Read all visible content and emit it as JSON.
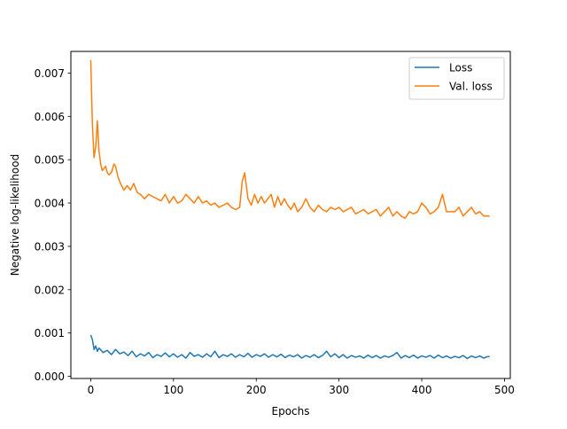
{
  "chart_data": {
    "type": "line",
    "title": "",
    "xlabel": "Epochs",
    "ylabel": "Negative log-likelihood",
    "xlim": [
      -24,
      507
    ],
    "ylim": [
      -5e-05,
      0.0075
    ],
    "x_ticks": [
      0,
      100,
      200,
      300,
      400,
      500
    ],
    "y_ticks": [
      0.0,
      0.001,
      0.002,
      0.003,
      0.004,
      0.005,
      0.006,
      0.007
    ],
    "y_tick_labels": [
      "0.000",
      "0.001",
      "0.002",
      "0.003",
      "0.004",
      "0.005",
      "0.006",
      "0.007"
    ],
    "grid": false,
    "legend_position": "top-right",
    "series": [
      {
        "name": "Loss",
        "color": "#1f77b4",
        "x": [
          0,
          2,
          4,
          6,
          8,
          10,
          15,
          20,
          25,
          30,
          35,
          40,
          45,
          50,
          55,
          60,
          65,
          70,
          75,
          80,
          85,
          90,
          95,
          100,
          105,
          110,
          115,
          120,
          125,
          130,
          135,
          140,
          145,
          150,
          155,
          160,
          165,
          170,
          175,
          180,
          185,
          190,
          195,
          200,
          205,
          210,
          215,
          220,
          225,
          230,
          235,
          240,
          245,
          250,
          255,
          260,
          265,
          270,
          275,
          280,
          285,
          290,
          295,
          300,
          305,
          310,
          315,
          320,
          325,
          330,
          335,
          340,
          345,
          350,
          355,
          360,
          365,
          370,
          375,
          380,
          385,
          390,
          395,
          400,
          405,
          410,
          415,
          420,
          425,
          430,
          435,
          440,
          445,
          450,
          455,
          460,
          465,
          470,
          475,
          480,
          482
        ],
        "y": [
          0.00095,
          0.00085,
          0.00062,
          0.0007,
          0.00058,
          0.00065,
          0.00055,
          0.0006,
          0.0005,
          0.00062,
          0.00052,
          0.00056,
          0.00048,
          0.00058,
          0.00045,
          0.00052,
          0.00047,
          0.00055,
          0.00043,
          0.0005,
          0.00046,
          0.00054,
          0.00045,
          0.00052,
          0.00044,
          0.0005,
          0.00042,
          0.00055,
          0.00046,
          0.0005,
          0.00044,
          0.00052,
          0.00045,
          0.00058,
          0.00043,
          0.0005,
          0.00046,
          0.00052,
          0.00044,
          0.0005,
          0.00045,
          0.00053,
          0.00044,
          0.0005,
          0.00046,
          0.00052,
          0.00044,
          0.0005,
          0.00045,
          0.00051,
          0.00043,
          0.00049,
          0.00045,
          0.0005,
          0.00042,
          0.00048,
          0.00044,
          0.0005,
          0.00043,
          0.00048,
          0.00058,
          0.00045,
          0.00052,
          0.00043,
          0.0005,
          0.00042,
          0.00048,
          0.00044,
          0.00047,
          0.00042,
          0.00049,
          0.00043,
          0.00048,
          0.00042,
          0.00047,
          0.00044,
          0.00048,
          0.00055,
          0.00042,
          0.00048,
          0.00043,
          0.00049,
          0.00042,
          0.00047,
          0.00044,
          0.00048,
          0.00042,
          0.00049,
          0.00043,
          0.00047,
          0.00042,
          0.00046,
          0.00043,
          0.00048,
          0.00041,
          0.00047,
          0.00043,
          0.00047,
          0.00042,
          0.00046,
          0.00045
        ]
      },
      {
        "name": "Val. loss",
        "color": "#ff7f0e",
        "x": [
          0,
          2,
          4,
          6,
          8,
          10,
          12,
          14,
          16,
          18,
          20,
          22,
          25,
          28,
          30,
          33,
          36,
          40,
          44,
          48,
          52,
          56,
          60,
          65,
          70,
          75,
          80,
          85,
          90,
          95,
          100,
          105,
          110,
          115,
          120,
          125,
          130,
          135,
          140,
          145,
          150,
          155,
          160,
          165,
          170,
          175,
          180,
          183,
          186,
          190,
          194,
          198,
          202,
          206,
          210,
          214,
          218,
          222,
          226,
          230,
          234,
          238,
          242,
          246,
          250,
          255,
          260,
          265,
          270,
          275,
          280,
          285,
          290,
          295,
          300,
          305,
          310,
          315,
          320,
          325,
          330,
          335,
          340,
          345,
          350,
          355,
          360,
          365,
          370,
          375,
          380,
          385,
          390,
          395,
          400,
          405,
          410,
          415,
          420,
          425,
          430,
          435,
          440,
          445,
          450,
          455,
          460,
          465,
          470,
          475,
          480,
          482
        ],
        "y": [
          0.0073,
          0.0058,
          0.00505,
          0.0053,
          0.0059,
          0.0052,
          0.0049,
          0.00475,
          0.0048,
          0.00485,
          0.0047,
          0.00465,
          0.0047,
          0.0049,
          0.00485,
          0.0046,
          0.00445,
          0.0043,
          0.0044,
          0.0043,
          0.00445,
          0.00425,
          0.0042,
          0.0041,
          0.0042,
          0.00415,
          0.0041,
          0.00405,
          0.0042,
          0.004,
          0.00415,
          0.004,
          0.00405,
          0.0042,
          0.0041,
          0.004,
          0.00415,
          0.004,
          0.00405,
          0.00395,
          0.004,
          0.0039,
          0.00395,
          0.004,
          0.0039,
          0.00385,
          0.0039,
          0.0045,
          0.0047,
          0.0041,
          0.00395,
          0.0042,
          0.004,
          0.00415,
          0.004,
          0.0041,
          0.0042,
          0.0039,
          0.00415,
          0.00395,
          0.0041,
          0.00395,
          0.00385,
          0.004,
          0.0038,
          0.0039,
          0.0041,
          0.0039,
          0.0038,
          0.00395,
          0.00385,
          0.0038,
          0.0039,
          0.00385,
          0.0039,
          0.0038,
          0.00385,
          0.0039,
          0.00375,
          0.0038,
          0.00385,
          0.00375,
          0.0038,
          0.00385,
          0.0037,
          0.0038,
          0.0039,
          0.0037,
          0.0038,
          0.0037,
          0.00365,
          0.0038,
          0.00375,
          0.0038,
          0.004,
          0.0039,
          0.00375,
          0.0038,
          0.0039,
          0.0042,
          0.0038,
          0.0038,
          0.0038,
          0.0039,
          0.0037,
          0.0038,
          0.0039,
          0.00375,
          0.0038,
          0.0037,
          0.0037,
          0.0037
        ]
      }
    ]
  }
}
